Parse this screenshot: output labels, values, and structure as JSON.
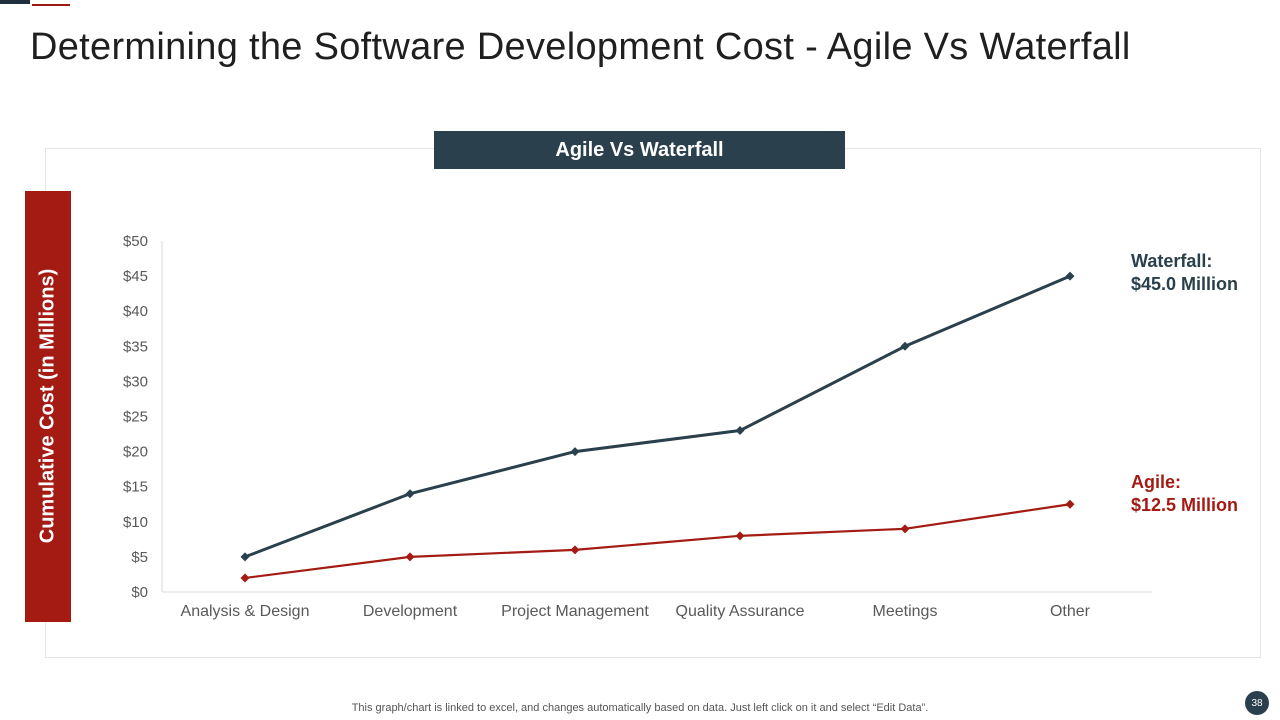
{
  "slide": {
    "title": "Determining the Software Development Cost - Agile Vs Waterfall",
    "footnote": "This graph/chart is linked to excel,  and changes automatically based on data. Just left click on it and select “Edit Data”.",
    "page_number": "38"
  },
  "colors": {
    "waterfall": "#2a404c",
    "agile": "#a31b12",
    "accent_dark": "#1f2f3c"
  },
  "chart_data": {
    "type": "line",
    "title": "Agile Vs Waterfall",
    "ylabel": "Cumulative Cost (in Millions)",
    "xlabel": "",
    "categories": [
      "Analysis & Design",
      "Development",
      "Project Management",
      "Quality Assurance",
      "Meetings",
      "Other"
    ],
    "ylim": [
      0,
      50
    ],
    "y_ticks": [
      0,
      5,
      10,
      15,
      20,
      25,
      30,
      35,
      40,
      45,
      50
    ],
    "y_tick_labels": [
      "$0",
      "$5",
      "$10",
      "$15",
      "$20",
      "$25",
      "$30",
      "$35",
      "$40",
      "$45",
      "$50"
    ],
    "grid": false,
    "series": [
      {
        "name": "Waterfall",
        "values": [
          5,
          14,
          20,
          23,
          35,
          45
        ],
        "end_label_line1": "Waterfall:",
        "end_label_line2": "$45.0 Million"
      },
      {
        "name": "Agile",
        "values": [
          2,
          5,
          6,
          8,
          9,
          12.5
        ],
        "end_label_line1": "Agile:",
        "end_label_line2": "$12.5 Million"
      }
    ]
  }
}
